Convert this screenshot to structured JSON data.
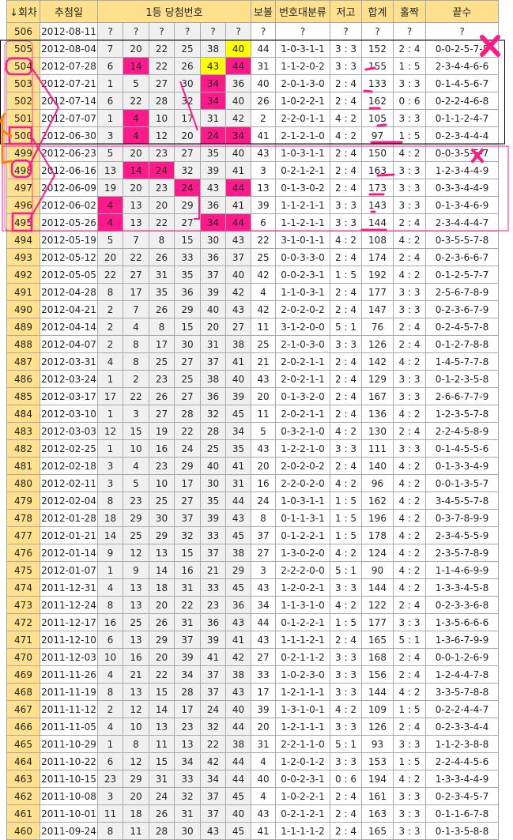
{
  "headers": {
    "round": "↓회차",
    "date": "추첨일",
    "numbers": "1등 당첨번호",
    "bonus": "보볼",
    "range": "번호대분류",
    "lowhigh": "저고",
    "sum": "합계",
    "oddeven": "홀짝",
    "endings": "끝수"
  },
  "colors": {
    "header": "#ffe08c",
    "highlight_pink": "#ff1a8c",
    "highlight_yellow": "#ffff00",
    "annotation_pink": "#ff1a8c",
    "annotation_orange": "#ff8000"
  },
  "rows": [
    {
      "r": "506",
      "d": "2012-08-11",
      "n": [
        "?",
        "?",
        "?",
        "?",
        "?",
        "?"
      ],
      "b": "?",
      "g": "?",
      "lh": "?",
      "s": "?",
      "oe": "?",
      "e": "?"
    },
    {
      "r": "505",
      "d": "2012-08-04",
      "n": [
        "7",
        "20",
        "22",
        "25",
        "38",
        "40"
      ],
      "b": "44",
      "g": "1-0-3-1-1",
      "lh": "3 : 3",
      "s": "152",
      "oe": "2 : 4",
      "e": "0-0-2-5-7-8",
      "hl": {
        "5": "yellow"
      }
    },
    {
      "r": "504",
      "d": "2012-07-28",
      "n": [
        "6",
        "14",
        "22",
        "26",
        "43",
        "44"
      ],
      "b": "31",
      "g": "1-1-2-0-2",
      "lh": "3 : 3",
      "s": "155",
      "oe": "1 : 5",
      "e": "2-3-4-4-6-6",
      "hl": {
        "1": "pink",
        "4": "yellow",
        "5": "pink"
      }
    },
    {
      "r": "503",
      "d": "2012-07-21",
      "n": [
        "1",
        "5",
        "27",
        "30",
        "34",
        "36"
      ],
      "b": "40",
      "g": "2-0-1-3-0",
      "lh": "2 : 4",
      "s": "133",
      "oe": "3 : 3",
      "e": "0-1-4-5-6-7",
      "hl": {
        "4": "pink"
      }
    },
    {
      "r": "502",
      "d": "2012-07-14",
      "n": [
        "6",
        "22",
        "28",
        "32",
        "34",
        "40"
      ],
      "b": "26",
      "g": "1-0-2-2-1",
      "lh": "2 : 4",
      "s": "162",
      "oe": "0 : 6",
      "e": "0-2-2-4-6-8",
      "hl": {
        "4": "pink"
      }
    },
    {
      "r": "501",
      "d": "2012-07-07",
      "n": [
        "1",
        "4",
        "10",
        "17",
        "31",
        "42"
      ],
      "b": "2",
      "g": "2-2-0-1-1",
      "lh": "4 : 2",
      "s": "105",
      "oe": "3 : 3",
      "e": "0-1-1-2-4-7",
      "hl": {
        "1": "pink"
      }
    },
    {
      "r": "500",
      "d": "2012-06-30",
      "n": [
        "3",
        "4",
        "12",
        "20",
        "24",
        "34"
      ],
      "b": "41",
      "g": "2-1-2-1-0",
      "lh": "4 : 2",
      "s": "97",
      "oe": "1 : 5",
      "e": "0-2-3-4-4-4",
      "hl": {
        "1": "pink",
        "4": "pink",
        "5": "pink"
      }
    },
    {
      "r": "499",
      "d": "2012-06-23",
      "n": [
        "5",
        "20",
        "23",
        "27",
        "35",
        "40"
      ],
      "b": "43",
      "g": "1-0-3-1-1",
      "lh": "2 : 4",
      "s": "150",
      "oe": "4 : 2",
      "e": "0-0-3-5-5-7"
    },
    {
      "r": "498",
      "d": "2012-06-16",
      "n": [
        "13",
        "14",
        "24",
        "32",
        "39",
        "41"
      ],
      "b": "3",
      "g": "0-2-1-2-1",
      "lh": "2 : 4",
      "s": "163",
      "oe": "3 : 3",
      "e": "1-2-3-4-4-9",
      "hl": {
        "1": "pink",
        "2": "pink"
      }
    },
    {
      "r": "497",
      "d": "2012-06-09",
      "n": [
        "19",
        "20",
        "23",
        "24",
        "43",
        "44"
      ],
      "b": "13",
      "g": "0-1-3-0-2",
      "lh": "2 : 4",
      "s": "173",
      "oe": "3 : 3",
      "e": "0-3-3-4-4-9",
      "hl": {
        "3": "pink",
        "5": "pink"
      }
    },
    {
      "r": "496",
      "d": "2012-06-02",
      "n": [
        "4",
        "13",
        "20",
        "29",
        "36",
        "41"
      ],
      "b": "39",
      "g": "1-1-2-1-1",
      "lh": "3 : 3",
      "s": "143",
      "oe": "3 : 3",
      "e": "0-1-3-4-6-9",
      "hl": {
        "0": "pink"
      }
    },
    {
      "r": "495",
      "d": "2012-05-26",
      "n": [
        "4",
        "13",
        "22",
        "27",
        "34",
        "44"
      ],
      "b": "6",
      "g": "1-1-2-1-1",
      "lh": "3 : 3",
      "s": "144",
      "oe": "2 : 4",
      "e": "2-3-4-4-4-7",
      "hl": {
        "0": "pink",
        "4": "pink",
        "5": "pink"
      }
    },
    {
      "r": "494",
      "d": "2012-05-19",
      "n": [
        "5",
        "7",
        "8",
        "15",
        "30",
        "43"
      ],
      "b": "22",
      "g": "3-1-0-1-1",
      "lh": "4 : 2",
      "s": "108",
      "oe": "4 : 2",
      "e": "0-3-5-5-7-8"
    },
    {
      "r": "493",
      "d": "2012-05-12",
      "n": [
        "20",
        "22",
        "26",
        "33",
        "36",
        "37"
      ],
      "b": "25",
      "g": "0-0-3-3-0",
      "lh": "2 : 4",
      "s": "174",
      "oe": "2 : 4",
      "e": "0-2-3-6-6-7"
    },
    {
      "r": "492",
      "d": "2012-05-05",
      "n": [
        "22",
        "27",
        "31",
        "35",
        "37",
        "40"
      ],
      "b": "42",
      "g": "0-0-2-3-1",
      "lh": "1 : 5",
      "s": "192",
      "oe": "4 : 2",
      "e": "0-1-2-5-7-7"
    },
    {
      "r": "491",
      "d": "2012-04-28",
      "n": [
        "8",
        "17",
        "35",
        "36",
        "39",
        "42"
      ],
      "b": "4",
      "g": "1-1-0-3-1",
      "lh": "2 : 4",
      "s": "177",
      "oe": "3 : 3",
      "e": "2-5-6-7-8-9"
    },
    {
      "r": "490",
      "d": "2012-04-21",
      "n": [
        "2",
        "7",
        "26",
        "29",
        "40",
        "43"
      ],
      "b": "42",
      "g": "2-0-2-0-2",
      "lh": "2 : 4",
      "s": "147",
      "oe": "3 : 3",
      "e": "0-2-3-6-7-9"
    },
    {
      "r": "489",
      "d": "2012-04-14",
      "n": [
        "2",
        "4",
        "8",
        "15",
        "20",
        "27"
      ],
      "b": "11",
      "g": "3-1-2-0-0",
      "lh": "5 : 1",
      "s": "76",
      "oe": "2 : 4",
      "e": "0-2-4-5-7-8"
    },
    {
      "r": "488",
      "d": "2012-04-07",
      "n": [
        "2",
        "8",
        "17",
        "30",
        "31",
        "38"
      ],
      "b": "25",
      "g": "2-1-0-3-0",
      "lh": "3 : 3",
      "s": "126",
      "oe": "2 : 4",
      "e": "0-1-2-7-8-8"
    },
    {
      "r": "487",
      "d": "2012-03-31",
      "n": [
        "4",
        "8",
        "25",
        "27",
        "37",
        "41"
      ],
      "b": "21",
      "g": "2-0-2-1-1",
      "lh": "2 : 4",
      "s": "142",
      "oe": "4 : 2",
      "e": "1-4-5-7-7-8"
    },
    {
      "r": "486",
      "d": "2012-03-24",
      "n": [
        "1",
        "2",
        "23",
        "25",
        "38",
        "40"
      ],
      "b": "43",
      "g": "2-0-2-1-1",
      "lh": "2 : 4",
      "s": "129",
      "oe": "3 : 3",
      "e": "0-1-2-3-5-8"
    },
    {
      "r": "485",
      "d": "2012-03-17",
      "n": [
        "17",
        "22",
        "26",
        "27",
        "36",
        "39"
      ],
      "b": "20",
      "g": "0-1-3-2-0",
      "lh": "2 : 4",
      "s": "167",
      "oe": "3 : 3",
      "e": "2-6-6-7-7-9"
    },
    {
      "r": "484",
      "d": "2012-03-10",
      "n": [
        "1",
        "3",
        "27",
        "28",
        "32",
        "45"
      ],
      "b": "11",
      "g": "2-0-2-1-1",
      "lh": "2 : 4",
      "s": "136",
      "oe": "4 : 2",
      "e": "1-2-3-5-7-8"
    },
    {
      "r": "483",
      "d": "2012-03-03",
      "n": [
        "12",
        "15",
        "19",
        "22",
        "28",
        "34"
      ],
      "b": "5",
      "g": "0-3-2-1-0",
      "lh": "4 : 2",
      "s": "130",
      "oe": "2 : 4",
      "e": "2-2-4-5-8-9"
    },
    {
      "r": "482",
      "d": "2012-02-25",
      "n": [
        "1",
        "10",
        "16",
        "24",
        "25",
        "35"
      ],
      "b": "43",
      "g": "1-2-2-1-0",
      "lh": "3 : 3",
      "s": "111",
      "oe": "3 : 3",
      "e": "0-1-4-5-5-6"
    },
    {
      "r": "481",
      "d": "2012-02-18",
      "n": [
        "3",
        "4",
        "23",
        "29",
        "40",
        "41"
      ],
      "b": "20",
      "g": "2-0-2-0-2",
      "lh": "2 : 4",
      "s": "140",
      "oe": "4 : 2",
      "e": "0-1-3-3-4-9"
    },
    {
      "r": "480",
      "d": "2012-02-11",
      "n": [
        "3",
        "5",
        "10",
        "17",
        "30",
        "31"
      ],
      "b": "16",
      "g": "2-2-0-2-0",
      "lh": "4 : 2",
      "s": "96",
      "oe": "4 : 2",
      "e": "0-0-1-3-5-7"
    },
    {
      "r": "479",
      "d": "2012-02-04",
      "n": [
        "8",
        "23",
        "25",
        "27",
        "35",
        "44"
      ],
      "b": "24",
      "g": "1-0-3-1-1",
      "lh": "1 : 5",
      "s": "162",
      "oe": "4 : 2",
      "e": "3-4-5-5-7-8"
    },
    {
      "r": "478",
      "d": "2012-01-28",
      "n": [
        "18",
        "29",
        "30",
        "37",
        "39",
        "43"
      ],
      "b": "8",
      "g": "0-1-1-3-1",
      "lh": "1 : 5",
      "s": "196",
      "oe": "4 : 2",
      "e": "0-3-7-8-9-9"
    },
    {
      "r": "477",
      "d": "2012-01-21",
      "n": [
        "14",
        "25",
        "29",
        "32",
        "33",
        "45"
      ],
      "b": "37",
      "g": "0-1-2-2-1",
      "lh": "1 : 5",
      "s": "178",
      "oe": "4 : 2",
      "e": "2-3-4-5-5-9"
    },
    {
      "r": "476",
      "d": "2012-01-14",
      "n": [
        "9",
        "12",
        "13",
        "15",
        "37",
        "38"
      ],
      "b": "27",
      "g": "1-3-0-2-0",
      "lh": "4 : 2",
      "s": "124",
      "oe": "4 : 2",
      "e": "2-3-5-7-8-9"
    },
    {
      "r": "475",
      "d": "2012-01-07",
      "n": [
        "1",
        "9",
        "14",
        "16",
        "21",
        "29"
      ],
      "b": "3",
      "g": "2-2-2-0-0",
      "lh": "5 : 1",
      "s": "90",
      "oe": "4 : 2",
      "e": "1-1-4-6-9-9"
    },
    {
      "r": "474",
      "d": "2011-12-31",
      "n": [
        "4",
        "13",
        "18",
        "31",
        "33",
        "45"
      ],
      "b": "43",
      "g": "1-2-0-2-1",
      "lh": "3 : 3",
      "s": "144",
      "oe": "4 : 2",
      "e": "1-3-3-4-5-8"
    },
    {
      "r": "473",
      "d": "2011-12-24",
      "n": [
        "8",
        "13",
        "20",
        "22",
        "23",
        "36"
      ],
      "b": "34",
      "g": "1-1-3-1-0",
      "lh": "4 : 2",
      "s": "122",
      "oe": "2 : 4",
      "e": "0-2-3-3-6-8"
    },
    {
      "r": "472",
      "d": "2011-12-17",
      "n": [
        "16",
        "25",
        "26",
        "31",
        "36",
        "43"
      ],
      "b": "44",
      "g": "0-1-2-2-1",
      "lh": "1 : 5",
      "s": "177",
      "oe": "3 : 3",
      "e": "1-3-5-6-6-6"
    },
    {
      "r": "471",
      "d": "2011-12-10",
      "n": [
        "6",
        "13",
        "29",
        "37",
        "39",
        "41"
      ],
      "b": "43",
      "g": "1-1-1-2-1",
      "lh": "2 : 4",
      "s": "165",
      "oe": "5 : 1",
      "e": "1-3-6-7-9-9"
    },
    {
      "r": "470",
      "d": "2011-12-03",
      "n": [
        "10",
        "16",
        "20",
        "39",
        "41",
        "42"
      ],
      "b": "27",
      "g": "0-2-1-1-2",
      "lh": "3 : 3",
      "s": "168",
      "oe": "2 : 4",
      "e": "0-0-1-2-6-9"
    },
    {
      "r": "469",
      "d": "2011-11-26",
      "n": [
        "4",
        "21",
        "22",
        "34",
        "37",
        "38"
      ],
      "b": "33",
      "g": "1-0-2-3-0",
      "lh": "3 : 3",
      "s": "156",
      "oe": "2 : 4",
      "e": "1-2-4-4-7-8"
    },
    {
      "r": "468",
      "d": "2011-11-19",
      "n": [
        "8",
        "13",
        "15",
        "28",
        "37",
        "43"
      ],
      "b": "17",
      "g": "1-2-1-1-1",
      "lh": "3 : 3",
      "s": "144",
      "oe": "4 : 2",
      "e": "3-3-5-7-8-8"
    },
    {
      "r": "467",
      "d": "2011-11-12",
      "n": [
        "2",
        "12",
        "14",
        "17",
        "24",
        "40"
      ],
      "b": "39",
      "g": "1-3-1-0-1",
      "lh": "4 : 2",
      "s": "109",
      "oe": "1 : 5",
      "e": "0-2-2-4-4-7"
    },
    {
      "r": "466",
      "d": "2011-11-05",
      "n": [
        "4",
        "10",
        "13",
        "23",
        "32",
        "44"
      ],
      "b": "20",
      "g": "1-2-1-1-1",
      "lh": "3 : 3",
      "s": "126",
      "oe": "2 : 4",
      "e": "0-2-3-3-4-4"
    },
    {
      "r": "465",
      "d": "2011-10-29",
      "n": [
        "1",
        "8",
        "11",
        "13",
        "22",
        "38"
      ],
      "b": "31",
      "g": "2-2-1-1-0",
      "lh": "5 : 1",
      "s": "93",
      "oe": "3 : 3",
      "e": "1-1-2-3-8-8"
    },
    {
      "r": "464",
      "d": "2011-10-22",
      "n": [
        "6",
        "12",
        "15",
        "34",
        "42",
        "44"
      ],
      "b": "4",
      "g": "1-2-0-1-2",
      "lh": "3 : 3",
      "s": "153",
      "oe": "1 : 5",
      "e": "2-2-4-4-5-6"
    },
    {
      "r": "463",
      "d": "2011-10-15",
      "n": [
        "23",
        "29",
        "31",
        "33",
        "34",
        "44"
      ],
      "b": "40",
      "g": "0-0-2-3-1",
      "lh": "0 : 6",
      "s": "194",
      "oe": "4 : 2",
      "e": "1-3-3-4-4-9"
    },
    {
      "r": "462",
      "d": "2011-10-08",
      "n": [
        "3",
        "20",
        "24",
        "32",
        "37",
        "45"
      ],
      "b": "4",
      "g": "1-0-2-2-1",
      "lh": "2 : 4",
      "s": "161",
      "oe": "3 : 3",
      "e": "0-2-3-4-5-7"
    },
    {
      "r": "461",
      "d": "2011-10-01",
      "n": [
        "11",
        "18",
        "26",
        "31",
        "37",
        "40"
      ],
      "b": "43",
      "g": "0-2-1-2-1",
      "lh": "2 : 4",
      "s": "163",
      "oe": "3 : 3",
      "e": "0-1-1-6-7-8"
    },
    {
      "r": "460",
      "d": "2011-09-24",
      "n": [
        "8",
        "11",
        "28",
        "30",
        "43",
        "45"
      ],
      "b": "41",
      "g": "1-1-1-1-2",
      "lh": "2 : 4",
      "s": "165",
      "oe": "3 : 3",
      "e": "0-1-3-5-8-8"
    }
  ]
}
